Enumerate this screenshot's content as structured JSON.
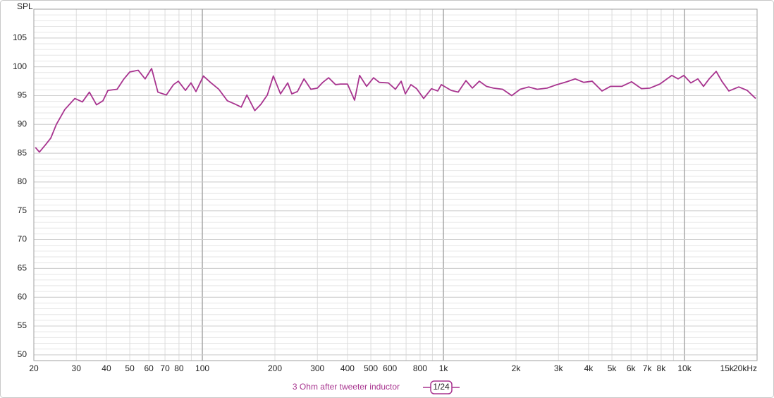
{
  "chart_data": {
    "type": "line",
    "y_label": "SPL",
    "log_x": true,
    "grid": true,
    "minor_grid": true,
    "xlim": [
      20,
      20000
    ],
    "ylim": [
      49,
      110
    ],
    "xticks": [
      20,
      30,
      40,
      50,
      60,
      70,
      80,
      100,
      200,
      300,
      400,
      500,
      600,
      800,
      {
        "value": 1000,
        "label": "1k"
      },
      {
        "value": 2000,
        "label": "2k"
      },
      {
        "value": 3000,
        "label": "3k"
      },
      {
        "value": 4000,
        "label": "4k"
      },
      {
        "value": 5000,
        "label": "5k"
      },
      {
        "value": 6000,
        "label": "6k"
      },
      {
        "value": 7000,
        "label": "7k"
      },
      {
        "value": 8000,
        "label": "8k"
      },
      {
        "value": 10000,
        "label": "10k"
      },
      {
        "value": 15000,
        "label": "15k"
      },
      {
        "value": 20000,
        "label": "20kHz"
      }
    ],
    "yticks": [
      50,
      55,
      60,
      65,
      70,
      75,
      80,
      85,
      90,
      95,
      100,
      105
    ],
    "smoothing": "1/24",
    "x": [
      20.3,
      21.1,
      22.4,
      23.5,
      24.8,
      26.9,
      29.6,
      31.8,
      34.0,
      36.4,
      38.7,
      40.6,
      44.3,
      47.3,
      50.0,
      54.2,
      57.9,
      61.6,
      65.4,
      70.9,
      75.9,
      79.5,
      85.1,
      89.7,
      94.1,
      101,
      108,
      117,
      127,
      137,
      145,
      153,
      165,
      175,
      186,
      197,
      211,
      226,
      235,
      248,
      264,
      282,
      300,
      316,
      334,
      357,
      374,
      400,
      428,
      449,
      480,
      513,
      542,
      591,
      632,
      668,
      695,
      733,
      774,
      828,
      892,
      947,
      980,
      1077,
      1151,
      1240,
      1318,
      1409,
      1508,
      1613,
      1760,
      1921,
      2082,
      2258,
      2448,
      2690,
      2955,
      3248,
      3522,
      3818,
      4139,
      4548,
      4930,
      5491,
      6034,
      6631,
      7188,
      7899,
      8858,
      9411,
      9933,
      10622,
      11362,
      11990,
      12654,
      13535,
      14283,
      15276,
      16790,
      18204,
      19734
    ],
    "series": [
      {
        "name": "3 Ohm after tweeter inductor",
        "color": "#a8348f",
        "values": [
          86.0,
          85.2,
          86.5,
          87.6,
          90.0,
          92.6,
          94.5,
          93.9,
          95.6,
          93.4,
          94.1,
          95.9,
          96.1,
          97.9,
          99.1,
          99.4,
          97.9,
          99.7,
          95.6,
          95.1,
          96.9,
          97.5,
          95.9,
          97.2,
          95.7,
          98.4,
          97.3,
          96.1,
          94.1,
          93.5,
          93.0,
          95.1,
          92.4,
          93.5,
          95.1,
          98.4,
          95.3,
          97.2,
          95.3,
          95.7,
          97.9,
          96.1,
          96.3,
          97.3,
          98.1,
          96.9,
          97.0,
          97.0,
          94.2,
          98.5,
          96.6,
          98.1,
          97.3,
          97.2,
          96.1,
          97.5,
          95.3,
          96.9,
          96.2,
          94.5,
          96.2,
          95.8,
          96.9,
          95.9,
          95.6,
          97.6,
          96.3,
          97.5,
          96.6,
          96.3,
          96.1,
          95.0,
          96.1,
          96.5,
          96.1,
          96.3,
          96.9,
          97.4,
          97.9,
          97.3,
          97.5,
          95.8,
          96.6,
          96.6,
          97.4,
          96.2,
          96.3,
          97.0,
          98.5,
          97.9,
          98.5,
          97.2,
          97.9,
          96.6,
          97.9,
          99.2,
          97.5,
          95.8,
          96.5,
          95.9,
          94.5
        ]
      }
    ]
  }
}
